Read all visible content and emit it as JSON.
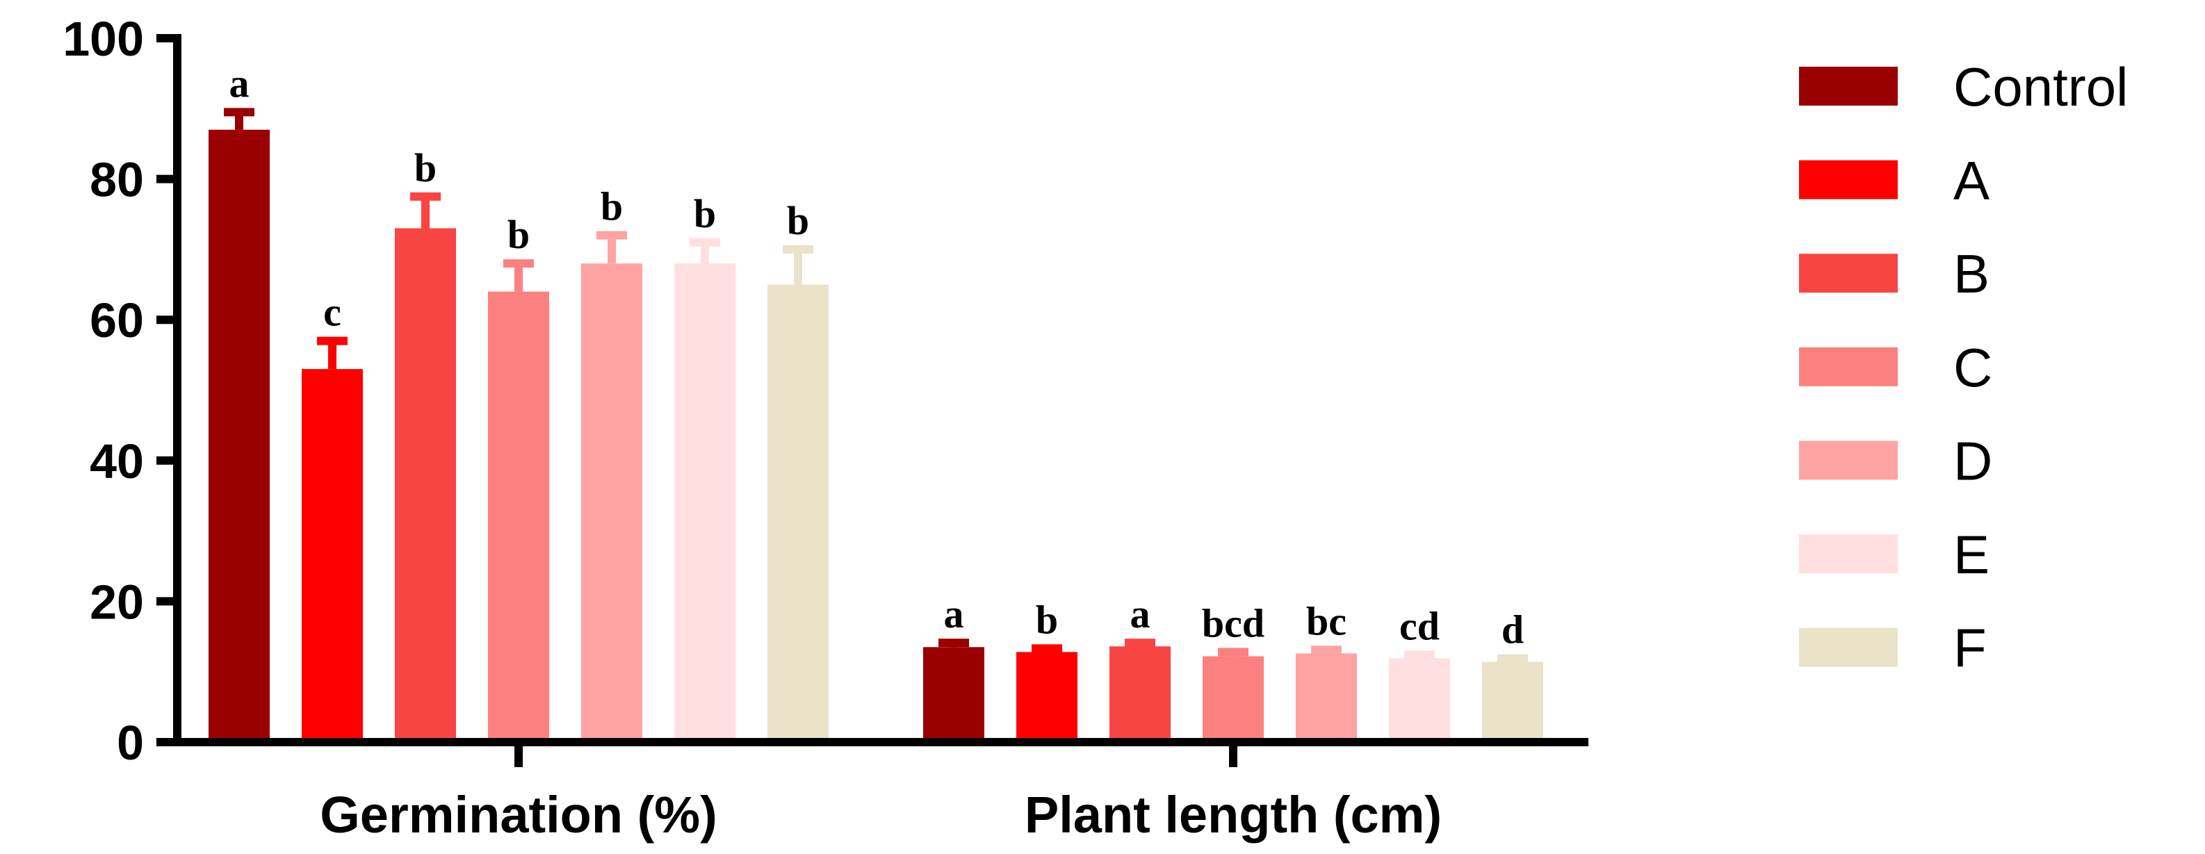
{
  "chart_data": {
    "type": "bar",
    "categories": [
      "Germination (%)",
      "Plant length (cm)"
    ],
    "ylim": [
      0,
      100
    ],
    "yticks": [
      "0",
      "20",
      "40",
      "60",
      "80",
      "100"
    ],
    "legend_position": "right",
    "series": [
      {
        "name": "Control",
        "color": "#9b0000",
        "values": [
          87,
          13.5
        ],
        "errors": [
          2.5,
          0.6
        ],
        "letters": [
          "a",
          "a"
        ]
      },
      {
        "name": "A",
        "color": "#ff0000",
        "values": [
          53,
          12.8
        ],
        "errors": [
          4,
          0.5
        ],
        "letters": [
          "c",
          "b"
        ]
      },
      {
        "name": "B",
        "color": "#f94444",
        "values": [
          73,
          13.6
        ],
        "errors": [
          4.5,
          0.5
        ],
        "letters": [
          "b",
          "a"
        ]
      },
      {
        "name": "C",
        "color": "#fd8080",
        "values": [
          64,
          12.2
        ],
        "errors": [
          4,
          0.6
        ],
        "letters": [
          "b",
          "bcd"
        ]
      },
      {
        "name": "D",
        "color": "#ffa3a3",
        "values": [
          68,
          12.6
        ],
        "errors": [
          4,
          0.5
        ],
        "letters": [
          "b",
          "bc"
        ]
      },
      {
        "name": "E",
        "color": "#ffdfe0",
        "values": [
          68,
          11.9
        ],
        "errors": [
          3,
          0.5
        ],
        "letters": [
          "b",
          "cd"
        ]
      },
      {
        "name": "F",
        "color": "#e8e3c9",
        "values": [
          65,
          11.4
        ],
        "errors": [
          5,
          0.5
        ],
        "letters": [
          "b",
          "d"
        ]
      }
    ]
  }
}
